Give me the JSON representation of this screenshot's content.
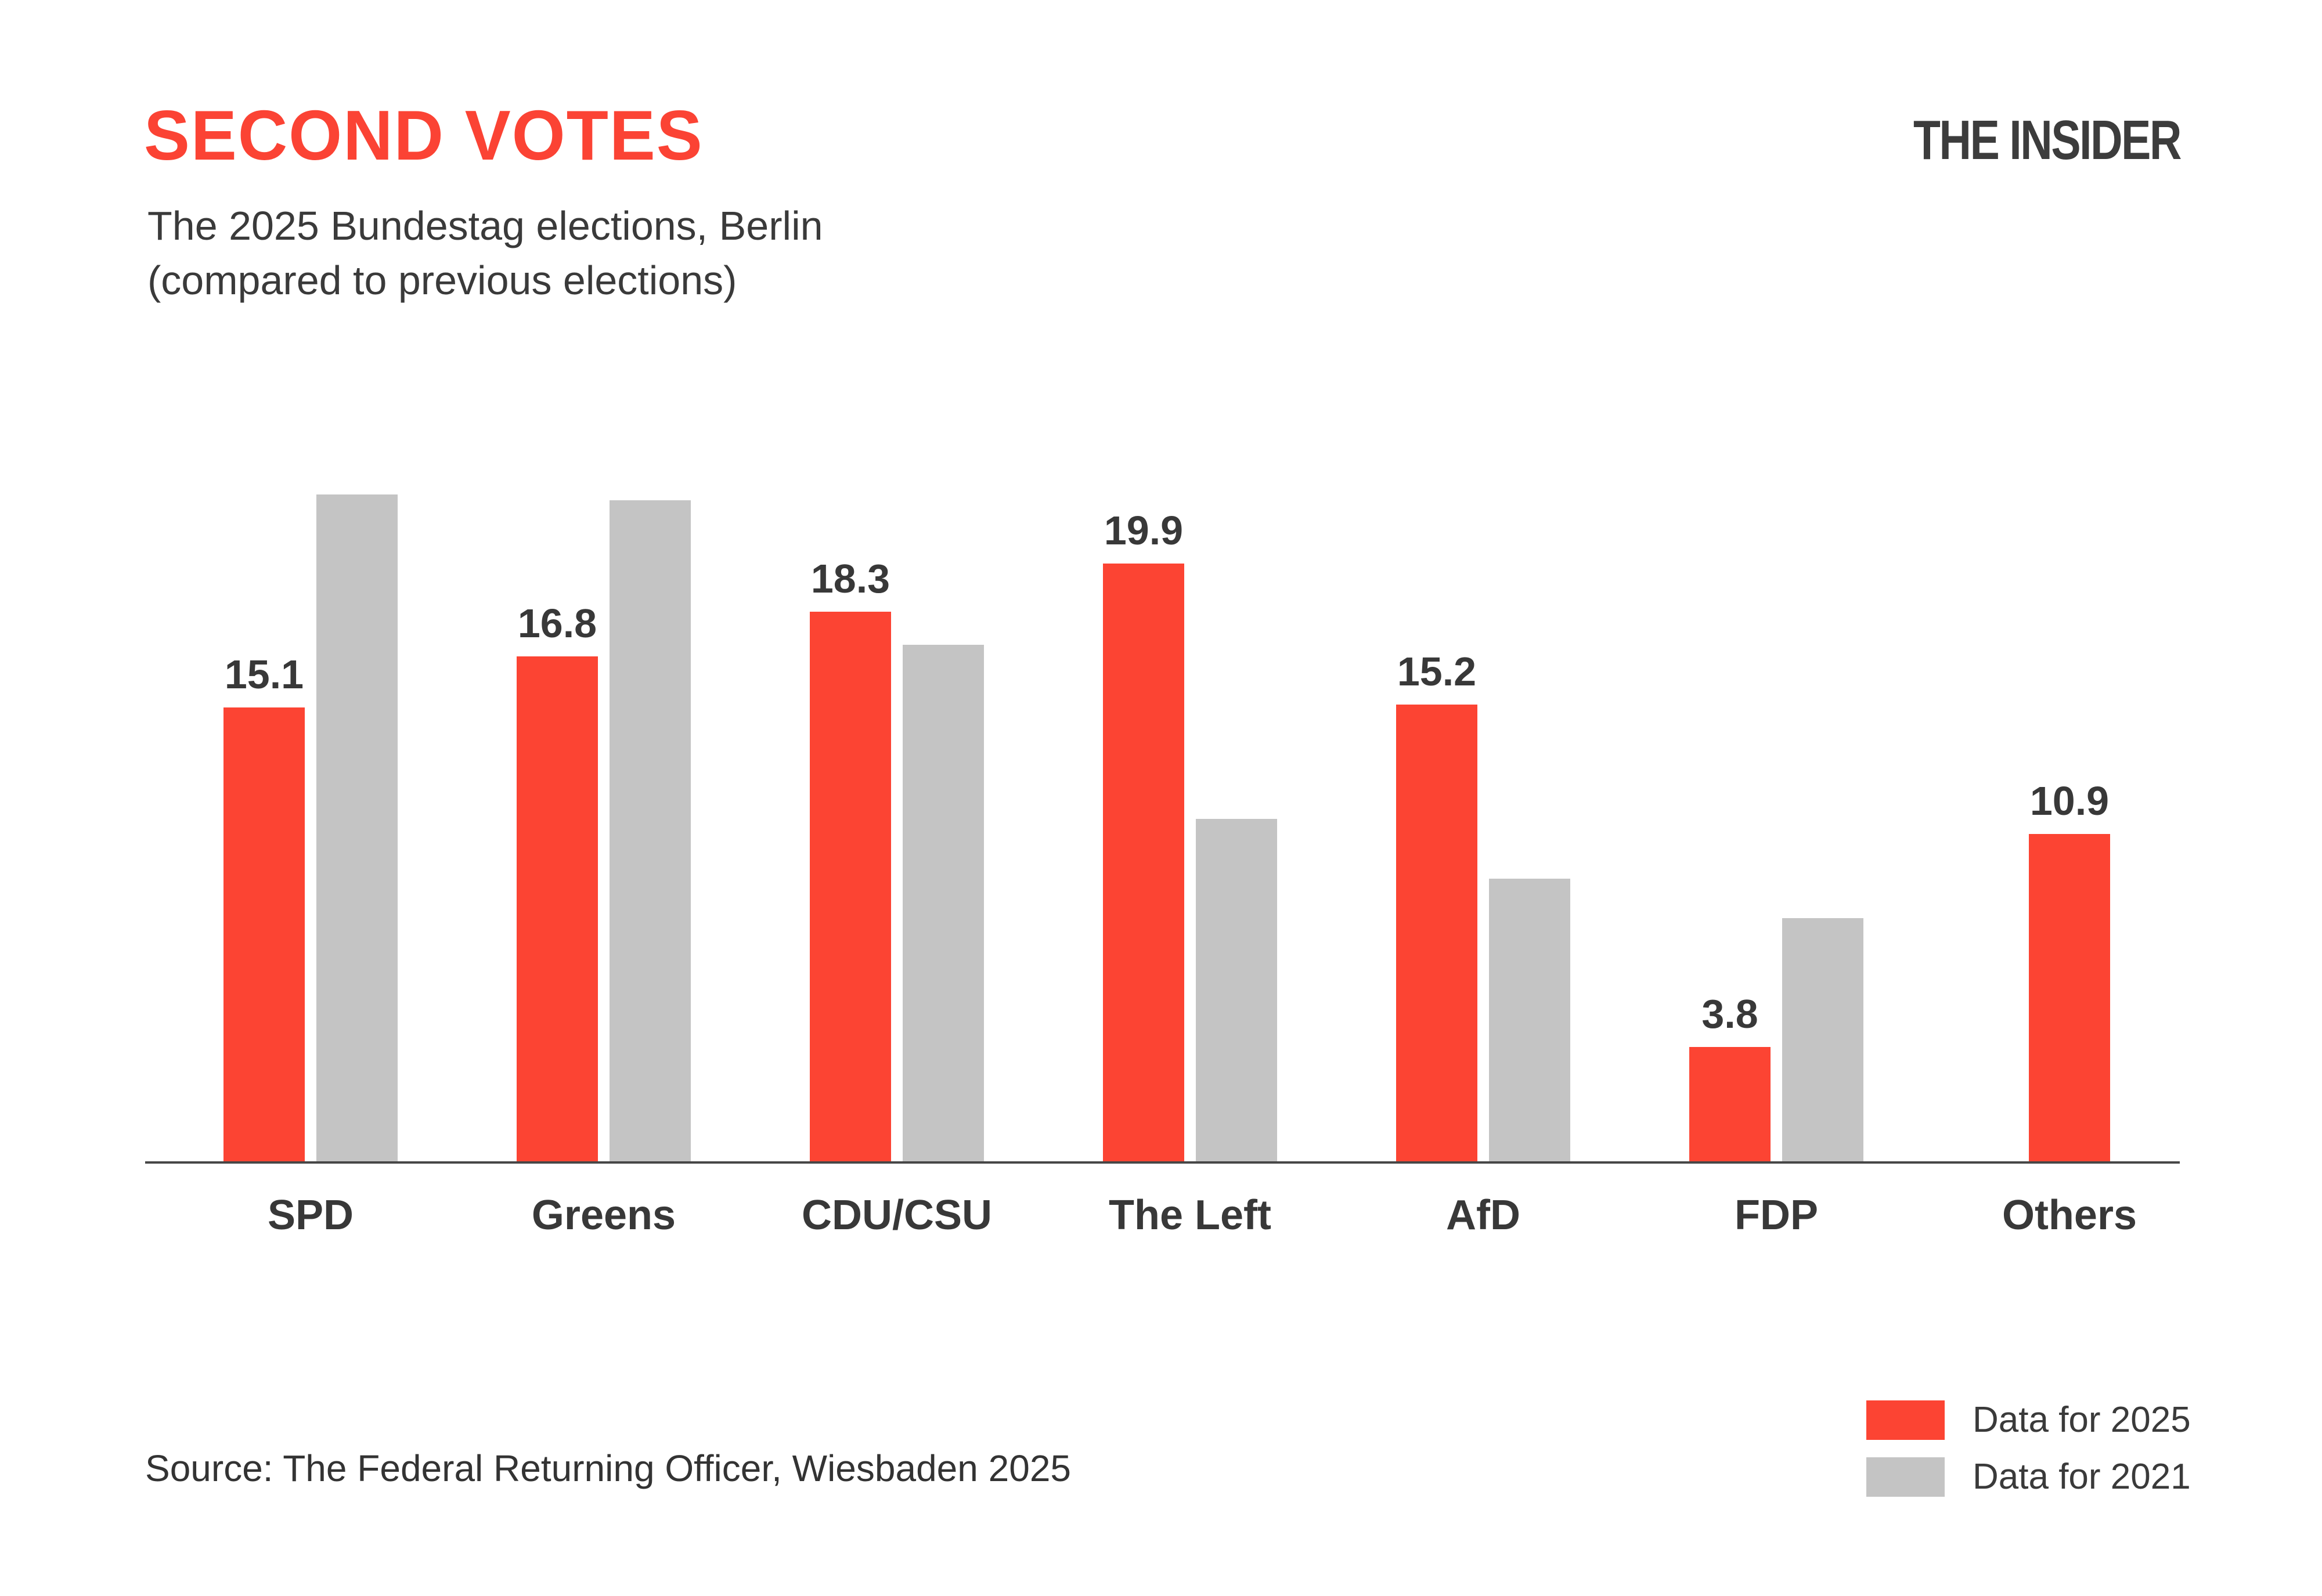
{
  "header": {
    "title": "SECOND VOTES",
    "subtitle_line1": "The 2025 Bundestag elections, Berlin",
    "subtitle_line2": "(compared to previous elections)",
    "brand": "THE INSIDER"
  },
  "chart_data": {
    "type": "bar",
    "title": "SECOND VOTES",
    "subtitle": "The 2025 Bundestag elections, Berlin (compared to previous elections)",
    "categories": [
      "SPD",
      "Greens",
      "CDU/CSU",
      "The Left",
      "AfD",
      "FDP",
      "Others"
    ],
    "series": [
      {
        "name": "Data for 2025",
        "color": "#FC4433",
        "values": [
          15.1,
          16.8,
          18.3,
          19.9,
          15.2,
          3.8,
          10.9
        ],
        "value_labels_shown": true
      },
      {
        "name": "Data for 2021",
        "color": "#C4C4C4",
        "values": [
          22.2,
          22.0,
          17.2,
          11.4,
          9.4,
          8.1,
          null
        ],
        "value_labels_shown": false
      }
    ],
    "xlabel": "",
    "ylabel": "",
    "y_axis": "hidden",
    "ylim": [
      0,
      23
    ],
    "grid": false,
    "legend_position": "bottom-right",
    "unit": "percent of second votes"
  },
  "legend": {
    "items": [
      {
        "label": "Data for 2025",
        "color": "#FC4433"
      },
      {
        "label": "Data for 2021",
        "color": "#C4C4C4"
      }
    ]
  },
  "source": "Source: The Federal Returning Officer, Wiesbaden 2025",
  "colors": {
    "accent_red": "#FC4433",
    "bar_gray": "#C4C4C4",
    "title_red": "#FB4334",
    "text_dark": "#383838",
    "subtitle_gray": "#3A3A3A",
    "brand_dark": "#3C3C3C",
    "source_gray": "#333333",
    "axis_line": "#474747",
    "background": "#FFFFFF"
  }
}
